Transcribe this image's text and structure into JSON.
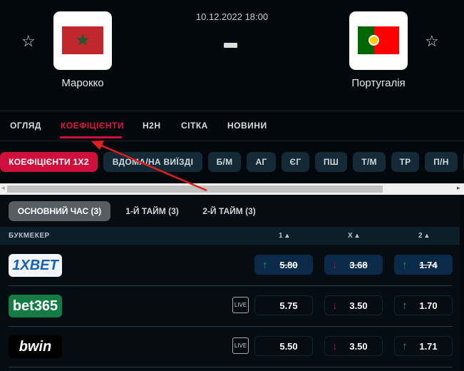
{
  "match": {
    "datetime": "10.12.2022 18:00",
    "score": "-",
    "home": "Марокко",
    "away": "Португалія"
  },
  "tabs": [
    {
      "label": "ОГЛЯД"
    },
    {
      "label": "КОЕФІЦІЄНТИ",
      "active": true
    },
    {
      "label": "H2H"
    },
    {
      "label": "СІТКА"
    },
    {
      "label": "НОВИНИ"
    }
  ],
  "markets": [
    "КОЕФІЦІЄНТИ 1X2",
    "ВДОМА/НА ВИЇЗДІ",
    "Б/М",
    "АГ",
    "ЄГ",
    "ПШ",
    "Т/М",
    "ТР",
    "П/Н"
  ],
  "periods": [
    "ОСНОВНИЙ ЧАС (3)",
    "1-Й ТАЙМ (3)",
    "2-Й ТАЙМ (3)"
  ],
  "table": {
    "headers": [
      "БУКМЕКЕР",
      "1 ▴",
      "X ▴",
      "2 ▴"
    ],
    "rows": [
      {
        "bookmaker": "1XBET",
        "live": "",
        "odds": [
          {
            "v": "5.80",
            "t": "up"
          },
          {
            "v": "3.68",
            "t": "down"
          },
          {
            "v": "1.74",
            "t": "up"
          }
        ],
        "highlight": true
      },
      {
        "bookmaker": "bet365",
        "live": "LIVE",
        "odds": [
          {
            "v": "5.75",
            "t": ""
          },
          {
            "v": "3.50",
            "t": "down"
          },
          {
            "v": "1.70",
            "t": "up"
          }
        ]
      },
      {
        "bookmaker": "bwin",
        "live": "LIVE",
        "odds": [
          {
            "v": "5.50",
            "t": ""
          },
          {
            "v": "3.50",
            "t": "down"
          },
          {
            "v": "1.71",
            "t": "up"
          }
        ]
      }
    ]
  },
  "colors": {
    "accent": "#d0103c",
    "up": "#1fa04b",
    "down": "#c0102c",
    "annotation_arrow": "#e0201c"
  }
}
